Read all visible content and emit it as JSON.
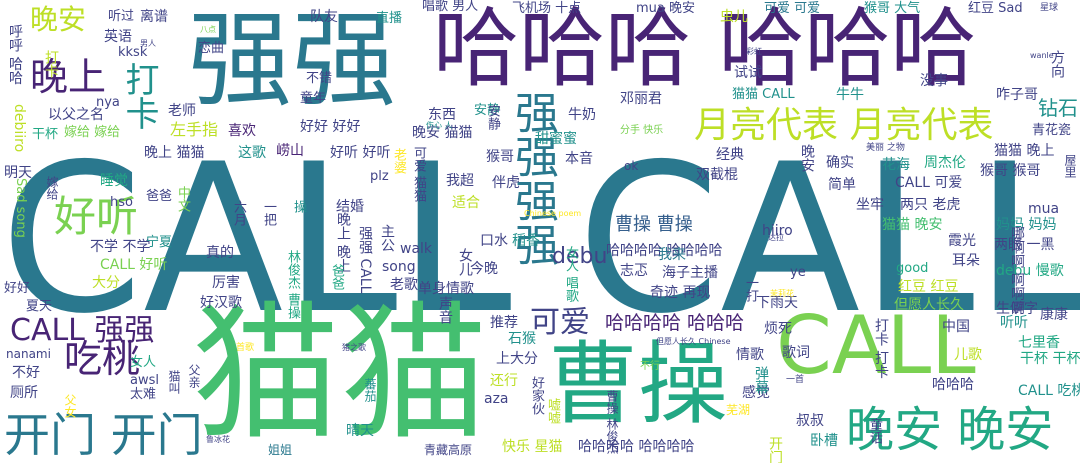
{
  "palette": {
    "background": "#ffffff",
    "dark_purple": "#482475",
    "purple": "#414487",
    "blue": "#355f8d",
    "teal": "#2a788e",
    "green_teal": "#21918c",
    "green": "#22a884",
    "light_green": "#44bf70",
    "lime": "#7ad151",
    "yellow_green": "#bddf26",
    "yellow": "#fde725"
  },
  "words": [
    {
      "text": "CALL CALL",
      "color": "teal"
    },
    {
      "text": "猫猫",
      "color": "light_green"
    },
    {
      "text": "强强",
      "color": "teal"
    },
    {
      "text": "哈哈哈 哈哈哈",
      "color": "dark_purple"
    },
    {
      "text": "曹操",
      "color": "green"
    },
    {
      "text": "CALL",
      "color": "lime"
    },
    {
      "text": "强强强强",
      "color": "teal"
    },
    {
      "text": "晚安 晚安",
      "color": "green"
    },
    {
      "text": "开门 开门",
      "color": "teal"
    },
    {
      "text": "月亮代表 月亮代表",
      "color": "yellow_green"
    },
    {
      "text": "晚上",
      "color": "dark_purple"
    },
    {
      "text": "好听",
      "color": "lime"
    },
    {
      "text": "吃桃",
      "color": "dark_purple"
    },
    {
      "text": "CALL 强强",
      "color": "dark_purple"
    },
    {
      "text": "晚安",
      "color": "yellow_green"
    },
    {
      "text": "打卡",
      "color": "green_teal"
    },
    {
      "text": "可爱",
      "color": "purple"
    },
    {
      "text": "哈哈哈哈 哈哈哈",
      "color": "dark_purple"
    },
    {
      "text": "曹操 曹操",
      "color": "blue"
    },
    {
      "text": "哈哈哈哈 哈哈哈哈",
      "color": "purple"
    },
    {
      "text": "debu",
      "color": "purple"
    },
    {
      "text": "钻石",
      "color": "green_teal"
    },
    {
      "text": "猴哥 猴哥",
      "color": "purple"
    },
    {
      "text": "猫猫 晚上",
      "color": "purple"
    },
    {
      "text": "CALL 可爱",
      "color": "purple"
    },
    {
      "text": "妈妈 妈妈",
      "color": "green_teal"
    },
    {
      "text": "两眼 一黑",
      "color": "purple"
    },
    {
      "text": "debu 慢歌",
      "color": "green"
    },
    {
      "text": "红豆 红豆",
      "color": "yellow_green"
    },
    {
      "text": "七里香",
      "color": "green"
    },
    {
      "text": "干杯 干杯",
      "color": "green"
    },
    {
      "text": "CALL 吃桃",
      "color": "green_teal"
    },
    {
      "text": "好好 好好",
      "color": "purple"
    },
    {
      "text": "好听 好听",
      "color": "purple"
    },
    {
      "text": "以父之名",
      "color": "purple"
    },
    {
      "text": "嫁给 嫁给",
      "color": "lime"
    },
    {
      "text": "干杯",
      "color": "green"
    },
    {
      "text": "左手指",
      "color": "yellow_green"
    },
    {
      "text": "晚上 猫猫",
      "color": "purple"
    },
    {
      "text": "喜欢",
      "color": "dark_purple"
    },
    {
      "text": "这歌",
      "color": "green_teal"
    },
    {
      "text": "崂山",
      "color": "dark_purple"
    },
    {
      "text": "晚安 猫猫",
      "color": "purple"
    },
    {
      "text": "猴哥",
      "color": "purple"
    },
    {
      "text": "甜蜜蜜",
      "color": "green_teal"
    },
    {
      "text": "本音",
      "color": "purple"
    },
    {
      "text": "经典",
      "color": "purple"
    },
    {
      "text": "确实",
      "color": "purple"
    },
    {
      "text": "花海",
      "color": "green_teal"
    },
    {
      "text": "周杰伦",
      "color": "green"
    },
    {
      "text": "两只 老虎",
      "color": "purple"
    },
    {
      "text": "双截棍",
      "color": "purple"
    },
    {
      "text": "简单",
      "color": "purple"
    },
    {
      "text": "坐牢",
      "color": "purple"
    },
    {
      "text": "猫猫 晚安",
      "color": "light_green"
    },
    {
      "text": "霞光",
      "color": "purple"
    },
    {
      "text": "耳朵",
      "color": "purple"
    },
    {
      "text": "hiiro",
      "color": "purple"
    },
    {
      "text": "适合",
      "color": "yellow_green"
    },
    {
      "text": "伴虎",
      "color": "purple"
    },
    {
      "text": "口水",
      "color": "purple"
    },
    {
      "text": "稻香",
      "color": "green_teal"
    },
    {
      "text": "我来",
      "color": "teal"
    },
    {
      "text": "志忑",
      "color": "purple"
    },
    {
      "text": "海子主播",
      "color": "purple"
    },
    {
      "text": "奇迹 再现",
      "color": "purple"
    },
    {
      "text": "下雨天",
      "color": "purple"
    },
    {
      "text": "烦死",
      "color": "purple"
    },
    {
      "text": "但愿人长久",
      "color": "lime"
    },
    {
      "text": "生僻字",
      "color": "purple"
    },
    {
      "text": "结婚",
      "color": "purple"
    },
    {
      "text": "厉害",
      "color": "purple"
    },
    {
      "text": "真的",
      "color": "purple"
    },
    {
      "text": "不学 不学",
      "color": "purple"
    },
    {
      "text": "宁夏",
      "color": "green_teal"
    },
    {
      "text": "CALL 好听",
      "color": "lime"
    },
    {
      "text": "大分",
      "color": "yellow_green"
    },
    {
      "text": "好汉歌",
      "color": "purple"
    },
    {
      "text": "walk",
      "color": "purple"
    },
    {
      "text": "song",
      "color": "purple"
    },
    {
      "text": "老歌",
      "color": "purple"
    },
    {
      "text": "单身情歌",
      "color": "purple"
    },
    {
      "text": "推荐",
      "color": "purple"
    },
    {
      "text": "石猴",
      "color": "green_teal"
    },
    {
      "text": "上大分",
      "color": "purple"
    },
    {
      "text": "还行",
      "color": "yellow_green"
    },
    {
      "text": "中国",
      "color": "purple"
    },
    {
      "text": "听听",
      "color": "green_teal"
    },
    {
      "text": "康康",
      "color": "purple"
    },
    {
      "text": "儿歌",
      "color": "yellow_green"
    },
    {
      "text": "情歌",
      "color": "purple"
    },
    {
      "text": "歌词",
      "color": "purple"
    },
    {
      "text": "感觉",
      "color": "purple"
    },
    {
      "text": "叔叔",
      "color": "purple"
    },
    {
      "text": "卧槽",
      "color": "green_teal"
    },
    {
      "text": "哈哈哈",
      "color": "purple"
    },
    {
      "text": "哈哈哈哈 哈哈哈哈",
      "color": "purple"
    },
    {
      "text": "快乐 星猫",
      "color": "yellow_green"
    },
    {
      "text": "晴天",
      "color": "green_teal"
    },
    {
      "text": "青藏高原",
      "color": "purple"
    },
    {
      "text": "姐姐",
      "color": "teal"
    },
    {
      "text": "太难",
      "color": "purple"
    },
    {
      "text": "厕所",
      "color": "purple"
    },
    {
      "text": "不好",
      "color": "purple"
    },
    {
      "text": "女人",
      "color": "green"
    },
    {
      "text": "awsl",
      "color": "purple"
    },
    {
      "text": "nanami",
      "color": "purple"
    },
    {
      "text": "夏天",
      "color": "purple"
    },
    {
      "text": "好好",
      "color": "purple"
    },
    {
      "text": "明天",
      "color": "purple"
    },
    {
      "text": "睡觉",
      "color": "green"
    },
    {
      "text": "爸爸",
      "color": "purple"
    },
    {
      "text": "hso",
      "color": "purple"
    },
    {
      "text": "plz",
      "color": "purple"
    },
    {
      "text": "我超",
      "color": "purple"
    },
    {
      "text": "东西",
      "color": "purple"
    },
    {
      "text": "安静",
      "color": "green_teal"
    },
    {
      "text": "牛奶",
      "color": "purple"
    },
    {
      "text": "邓丽君",
      "color": "purple"
    },
    {
      "text": "猫猫 CALL",
      "color": "green_teal"
    },
    {
      "text": "牛牛",
      "color": "green_teal"
    },
    {
      "text": "没事",
      "color": "purple"
    },
    {
      "text": "咋子哥",
      "color": "purple"
    },
    {
      "text": "青花瓷",
      "color": "purple"
    },
    {
      "text": "试试",
      "color": "purple"
    },
    {
      "text": "老师",
      "color": "purple"
    },
    {
      "text": "不错",
      "color": "purple"
    },
    {
      "text": "童年",
      "color": "purple"
    },
    {
      "text": "恋曲",
      "color": "purple"
    },
    {
      "text": "英语",
      "color": "purple"
    },
    {
      "text": "kksk",
      "color": "purple"
    },
    {
      "text": "nya",
      "color": "purple"
    },
    {
      "text": "听过",
      "color": "purple"
    },
    {
      "text": "离谱",
      "color": "purple"
    },
    {
      "text": "队友",
      "color": "purple"
    },
    {
      "text": "直播",
      "color": "green_teal"
    },
    {
      "text": "唱歌 男人",
      "color": "purple"
    },
    {
      "text": "飞机场 十点",
      "color": "purple"
    },
    {
      "text": "mua 晚安",
      "color": "purple"
    },
    {
      "text": "虫儿",
      "color": "yellow_green"
    },
    {
      "text": "可爱 可爱",
      "color": "teal"
    },
    {
      "text": "猴哥 大气",
      "color": "green_teal"
    },
    {
      "text": "红豆 Sad",
      "color": "purple"
    },
    {
      "text": "星球",
      "color": "purple"
    },
    {
      "text": "男人",
      "color": "purple"
    },
    {
      "text": "八点",
      "color": "lime"
    },
    {
      "text": "彩虹",
      "color": "purple"
    },
    {
      "text": "wanle",
      "color": "purple"
    },
    {
      "text": "伤心 人",
      "color": "green_teal"
    },
    {
      "text": "分手 快乐",
      "color": "lime"
    },
    {
      "text": "Chinese poem",
      "color": "yellow"
    },
    {
      "text": "美丽 之物",
      "color": "purple"
    },
    {
      "text": "但愿人长久 Chinese",
      "color": "purple"
    },
    {
      "text": "猪之歌",
      "color": "purple"
    },
    {
      "text": "鲁冰花",
      "color": "purple"
    },
    {
      "text": "首歌",
      "color": "yellow"
    },
    {
      "text": "达拉",
      "color": "purple"
    },
    {
      "text": "茉莉花",
      "color": "yellow"
    },
    {
      "text": "芜湖",
      "color": "yellow"
    },
    {
      "text": "一首",
      "color": "purple"
    },
    {
      "text": "good",
      "color": "green"
    },
    {
      "text": "ye",
      "color": "purple"
    },
    {
      "text": "不行",
      "color": "lime"
    },
    {
      "text": "今晚",
      "color": "purple"
    },
    {
      "text": "mua",
      "color": "purple"
    },
    {
      "text": "ok",
      "color": "purple"
    },
    {
      "text": "Sad song",
      "color": "lime"
    },
    {
      "text": "debiiro",
      "color": "yellow_green"
    },
    {
      "text": "呼呼 哈哈",
      "color": "purple"
    },
    {
      "text": "晚上 晚上",
      "color": "purple"
    },
    {
      "text": "强强 CALL",
      "color": "purple"
    },
    {
      "text": "女儿",
      "color": "purple"
    },
    {
      "text": "声音",
      "color": "purple"
    },
    {
      "text": "主公",
      "color": "purple"
    },
    {
      "text": "打卡 打卡",
      "color": "purple"
    },
    {
      "text": "弹幕",
      "color": "green_teal"
    },
    {
      "text": "哪啊啊 啊啊啊",
      "color": "purple"
    },
    {
      "text": "晚安",
      "color": "purple"
    },
    {
      "text": "中文",
      "color": "lime"
    },
    {
      "text": "六月",
      "color": "purple"
    },
    {
      "text": "一把",
      "color": "purple"
    },
    {
      "text": "操",
      "color": "green_teal"
    },
    {
      "text": "老婆",
      "color": "yellow"
    },
    {
      "text": "可爱 猫猫",
      "color": "purple"
    },
    {
      "text": "爸爸",
      "color": "green"
    },
    {
      "text": "林俊杰 曹操",
      "color": "green"
    },
    {
      "text": "女人 唱歌",
      "color": "green"
    },
    {
      "text": "父女",
      "color": "yellow"
    },
    {
      "text": "父亲",
      "color": "purple"
    },
    {
      "text": "猫叫",
      "color": "purple"
    },
    {
      "text": "蕃茄",
      "color": "green_teal"
    },
    {
      "text": "好家伙",
      "color": "purple"
    },
    {
      "text": "嘘嘘",
      "color": "yellow_green"
    },
    {
      "text": "曹操 林俊杰",
      "color": "purple"
    },
    {
      "text": "方向",
      "color": "purple"
    },
    {
      "text": "屋里",
      "color": "purple"
    },
    {
      "text": "嫁给",
      "color": "purple"
    },
    {
      "text": "打卡",
      "color": "yellow_green"
    },
    {
      "text": "开门",
      "color": "yellow_green"
    },
    {
      "text": "安静",
      "color": "purple"
    },
    {
      "text": "一打",
      "color": "purple"
    },
    {
      "text": "童话",
      "color": "purple"
    },
    {
      "text": "aza",
      "color": "purple"
    }
  ]
}
